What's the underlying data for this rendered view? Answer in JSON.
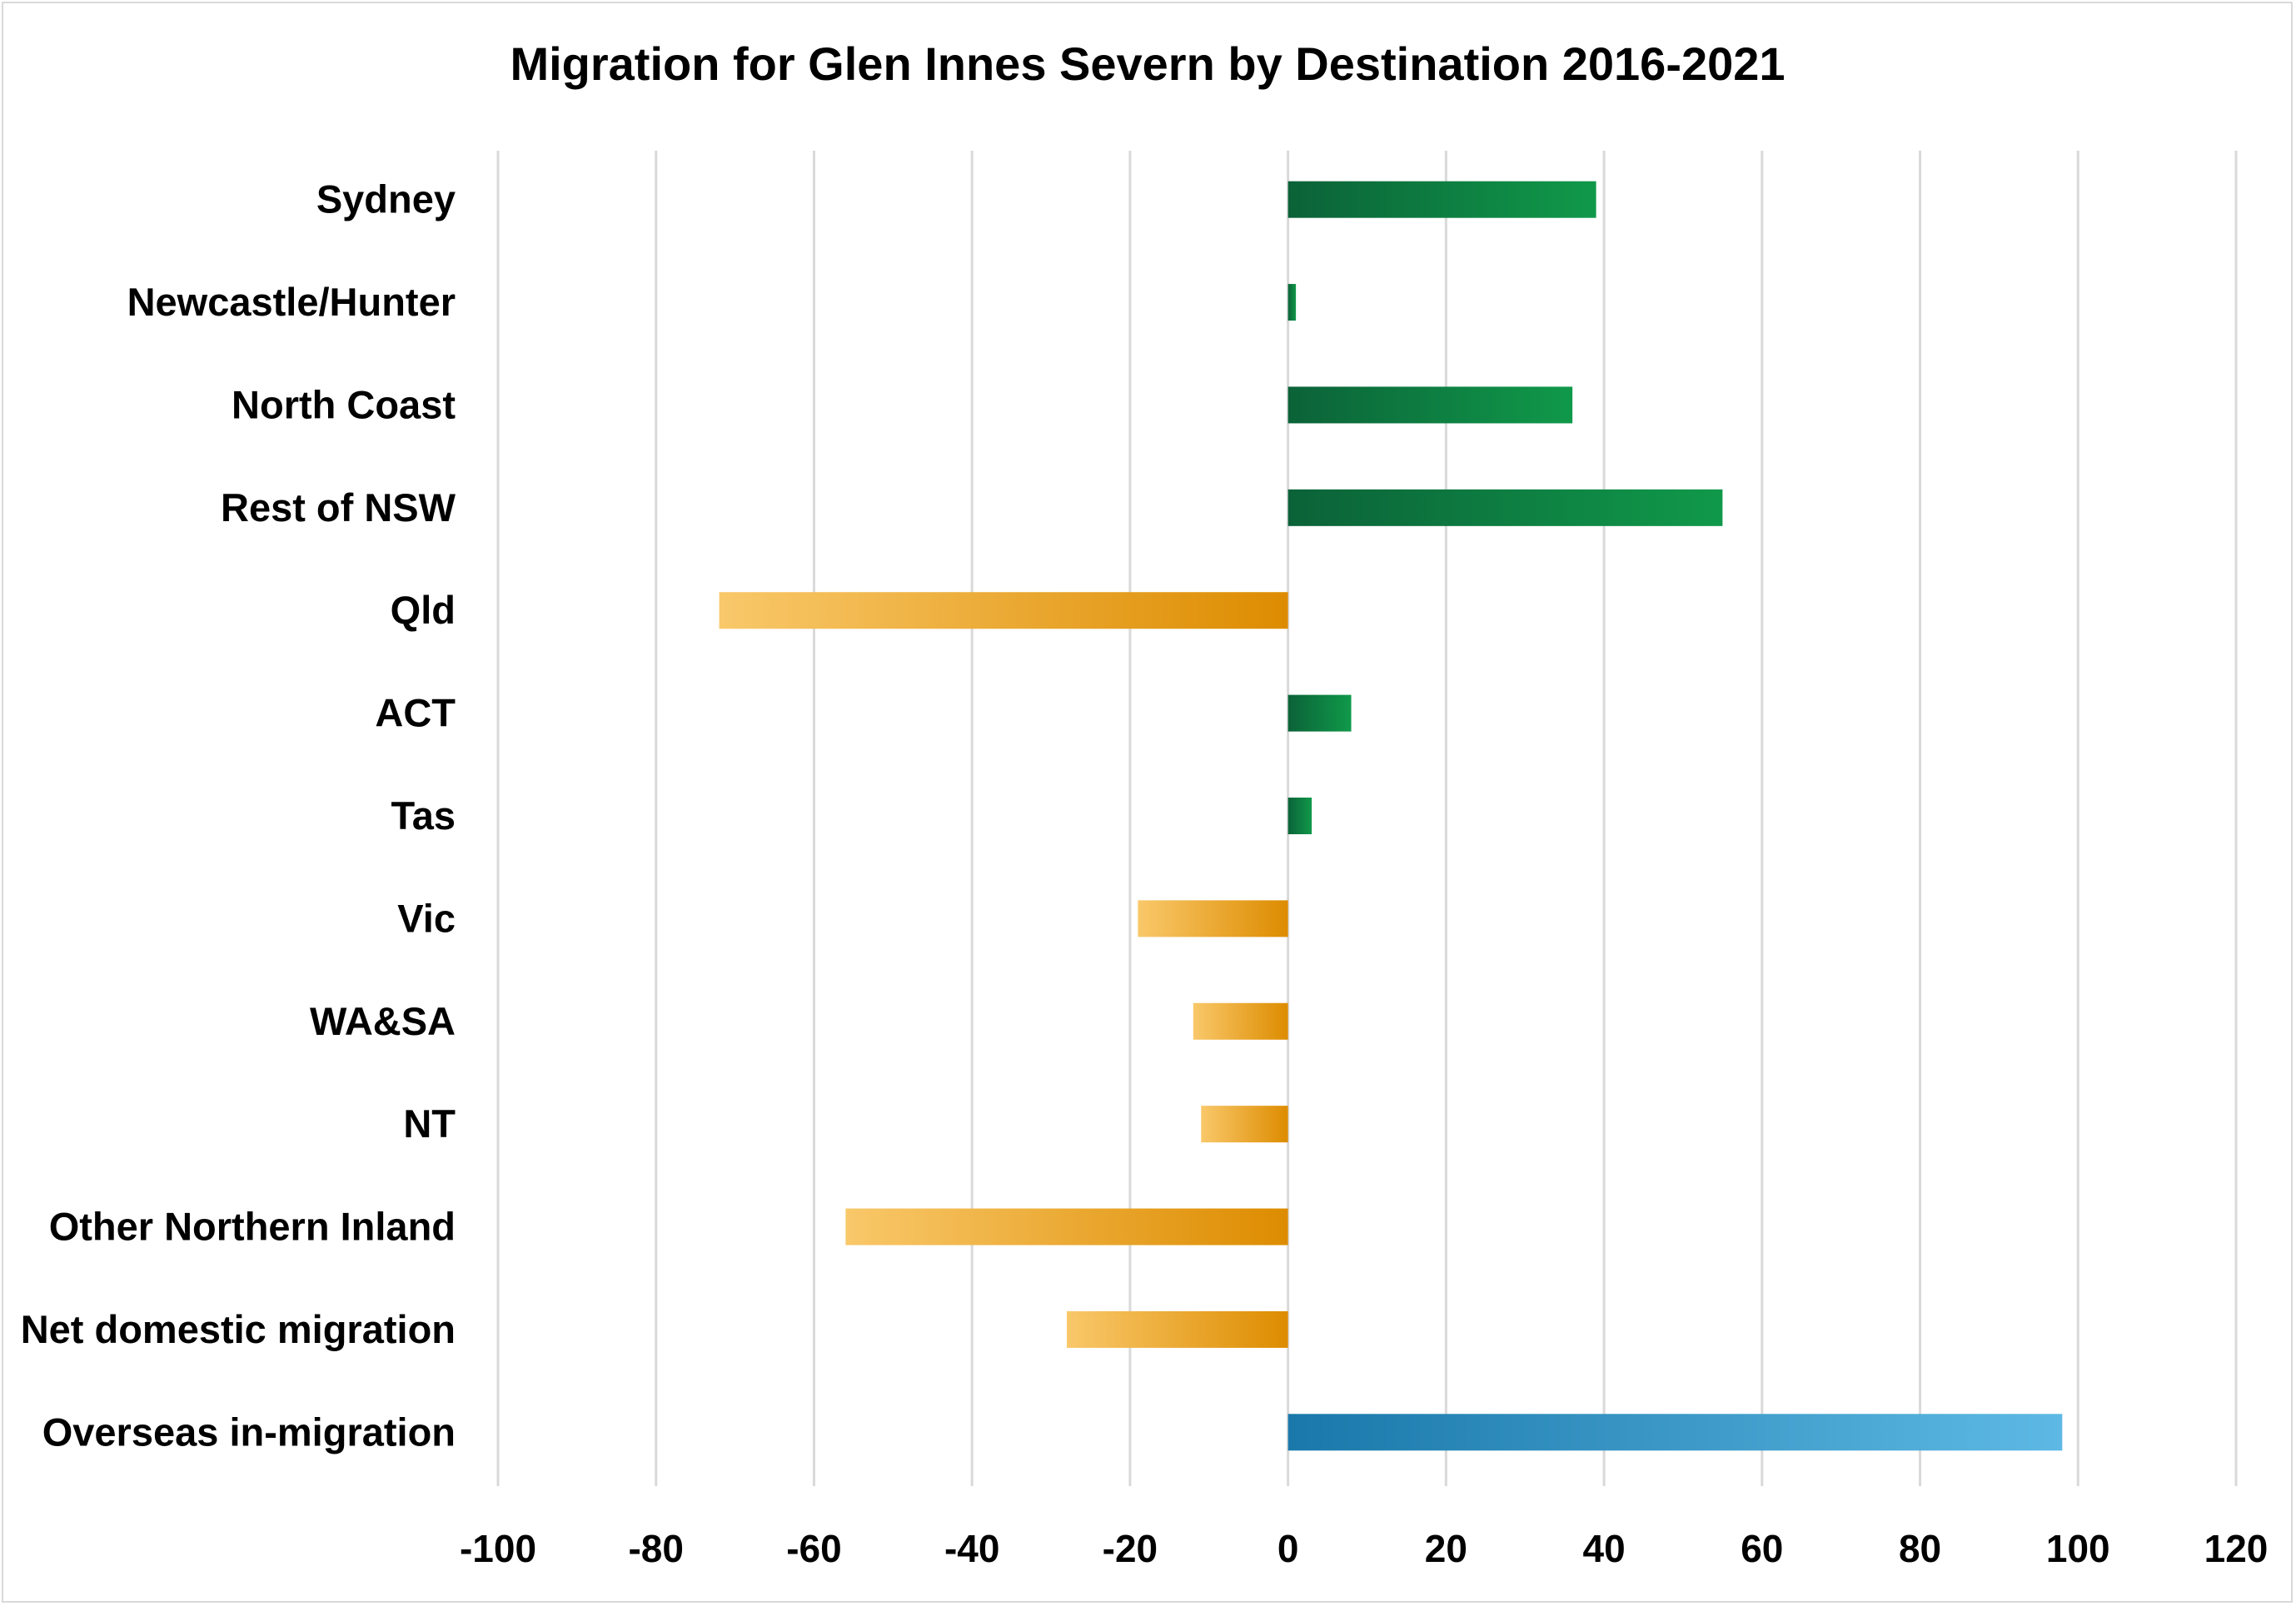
{
  "chart_data": {
    "type": "bar",
    "orientation": "horizontal",
    "title": "Migration for Glen Innes Severn by Destination 2016-2021",
    "xlabel": "",
    "ylabel": "",
    "xlim": [
      -100,
      120
    ],
    "xticks": [
      -100,
      -80,
      -60,
      -40,
      -20,
      0,
      20,
      40,
      60,
      80,
      100,
      120
    ],
    "grid": true,
    "legend": "none",
    "categories": [
      "Sydney",
      "Newcastle/Hunter",
      "North Coast",
      "Rest of NSW",
      "Qld",
      "ACT",
      "Tas",
      "Vic",
      "WA&SA",
      "NT",
      "Other Northern Inland",
      "Net domestic migration",
      "Overseas in-migration"
    ],
    "values": [
      39,
      1,
      36,
      55,
      -72,
      8,
      3,
      -19,
      -12,
      -11,
      -56,
      -28,
      98
    ],
    "colors": {
      "positive": [
        "#0b6238",
        "#10994a"
      ],
      "negative": [
        "#f9c86a",
        "#dd8c00"
      ],
      "overseas": [
        "#1a78aa",
        "#5db9e4"
      ],
      "grid": "#d9d9d9"
    }
  }
}
